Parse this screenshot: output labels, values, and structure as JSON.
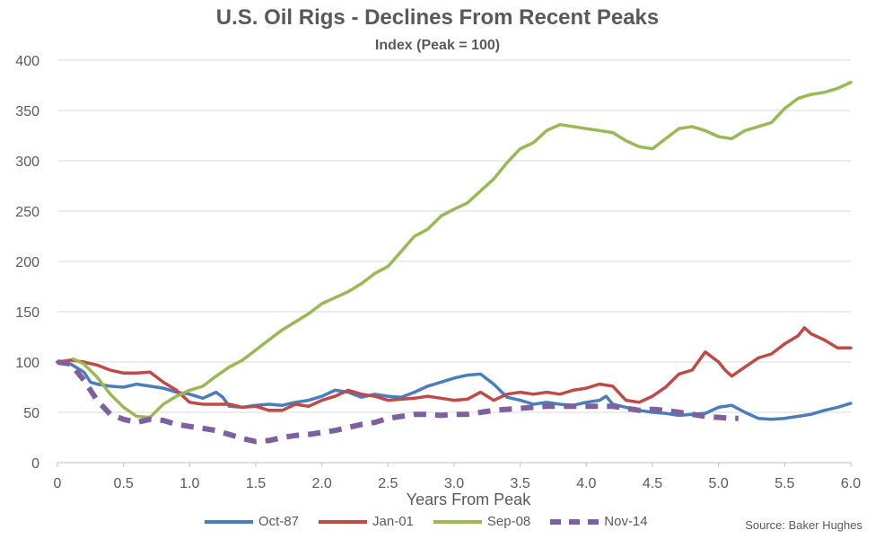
{
  "chart_data": {
    "type": "line",
    "title": "U.S. Oil Rigs - Declines From Recent Peaks",
    "subtitle": "Index (Peak = 100)",
    "xlabel": "Years From Peak",
    "ylabel": "",
    "xlim": [
      0,
      6.0
    ],
    "ylim": [
      0,
      400
    ],
    "xticks": [
      "0",
      "0.5",
      "1.0",
      "1.5",
      "2.0",
      "2.5",
      "3.0",
      "3.5",
      "4.0",
      "4.5",
      "5.0",
      "5.5",
      "6.0"
    ],
    "yticks": [
      "0",
      "50",
      "100",
      "150",
      "200",
      "250",
      "300",
      "350",
      "400"
    ],
    "grid": "horizontal",
    "legend_position": "bottom",
    "source": "Source: Baker Hughes",
    "series": [
      {
        "name": "Oct-87",
        "color": "#4a7ebb",
        "style": "solid",
        "points": [
          [
            0,
            100
          ],
          [
            0.1,
            98
          ],
          [
            0.2,
            90
          ],
          [
            0.25,
            80
          ],
          [
            0.3,
            78
          ],
          [
            0.4,
            76
          ],
          [
            0.5,
            75
          ],
          [
            0.6,
            78
          ],
          [
            0.7,
            76
          ],
          [
            0.8,
            74
          ],
          [
            0.9,
            70
          ],
          [
            1.0,
            68
          ],
          [
            1.1,
            64
          ],
          [
            1.2,
            70
          ],
          [
            1.25,
            65
          ],
          [
            1.3,
            56
          ],
          [
            1.4,
            55
          ],
          [
            1.5,
            57
          ],
          [
            1.6,
            58
          ],
          [
            1.7,
            57
          ],
          [
            1.8,
            60
          ],
          [
            1.9,
            62
          ],
          [
            2.0,
            66
          ],
          [
            2.1,
            72
          ],
          [
            2.2,
            70
          ],
          [
            2.3,
            65
          ],
          [
            2.4,
            68
          ],
          [
            2.5,
            66
          ],
          [
            2.6,
            65
          ],
          [
            2.7,
            70
          ],
          [
            2.8,
            76
          ],
          [
            2.9,
            80
          ],
          [
            3.0,
            84
          ],
          [
            3.1,
            87
          ],
          [
            3.2,
            88
          ],
          [
            3.3,
            78
          ],
          [
            3.4,
            65
          ],
          [
            3.5,
            62
          ],
          [
            3.6,
            58
          ],
          [
            3.7,
            60
          ],
          [
            3.8,
            58
          ],
          [
            3.9,
            57
          ],
          [
            4.0,
            60
          ],
          [
            4.1,
            62
          ],
          [
            4.15,
            66
          ],
          [
            4.2,
            58
          ],
          [
            4.3,
            55
          ],
          [
            4.4,
            52
          ],
          [
            4.5,
            50
          ],
          [
            4.6,
            49
          ],
          [
            4.7,
            47
          ],
          [
            4.8,
            48
          ],
          [
            4.9,
            49
          ],
          [
            5.0,
            55
          ],
          [
            5.1,
            57
          ],
          [
            5.2,
            50
          ],
          [
            5.3,
            44
          ],
          [
            5.4,
            43
          ],
          [
            5.5,
            44
          ],
          [
            5.6,
            46
          ],
          [
            5.7,
            48
          ],
          [
            5.8,
            52
          ],
          [
            5.9,
            55
          ],
          [
            6.0,
            59
          ]
        ]
      },
      {
        "name": "Jan-01",
        "color": "#be4b48",
        "style": "solid",
        "points": [
          [
            0,
            100
          ],
          [
            0.1,
            102
          ],
          [
            0.2,
            100
          ],
          [
            0.3,
            97
          ],
          [
            0.4,
            92
          ],
          [
            0.5,
            89
          ],
          [
            0.6,
            89
          ],
          [
            0.7,
            90
          ],
          [
            0.8,
            80
          ],
          [
            0.9,
            72
          ],
          [
            1.0,
            60
          ],
          [
            1.1,
            58
          ],
          [
            1.2,
            58
          ],
          [
            1.3,
            58
          ],
          [
            1.4,
            55
          ],
          [
            1.5,
            56
          ],
          [
            1.6,
            52
          ],
          [
            1.7,
            52
          ],
          [
            1.8,
            58
          ],
          [
            1.9,
            56
          ],
          [
            2.0,
            62
          ],
          [
            2.1,
            66
          ],
          [
            2.2,
            72
          ],
          [
            2.3,
            68
          ],
          [
            2.4,
            66
          ],
          [
            2.5,
            62
          ],
          [
            2.6,
            63
          ],
          [
            2.7,
            64
          ],
          [
            2.8,
            66
          ],
          [
            2.9,
            64
          ],
          [
            3.0,
            62
          ],
          [
            3.1,
            63
          ],
          [
            3.2,
            70
          ],
          [
            3.3,
            62
          ],
          [
            3.4,
            68
          ],
          [
            3.5,
            70
          ],
          [
            3.6,
            68
          ],
          [
            3.7,
            70
          ],
          [
            3.8,
            68
          ],
          [
            3.9,
            72
          ],
          [
            4.0,
            74
          ],
          [
            4.1,
            78
          ],
          [
            4.2,
            76
          ],
          [
            4.3,
            62
          ],
          [
            4.4,
            60
          ],
          [
            4.5,
            66
          ],
          [
            4.6,
            75
          ],
          [
            4.7,
            88
          ],
          [
            4.8,
            92
          ],
          [
            4.9,
            110
          ],
          [
            5.0,
            100
          ],
          [
            5.05,
            92
          ],
          [
            5.1,
            86
          ],
          [
            5.2,
            95
          ],
          [
            5.3,
            104
          ],
          [
            5.4,
            108
          ],
          [
            5.5,
            118
          ],
          [
            5.6,
            126
          ],
          [
            5.65,
            134
          ],
          [
            5.7,
            128
          ],
          [
            5.8,
            122
          ],
          [
            5.9,
            114
          ],
          [
            6.0,
            114
          ]
        ]
      },
      {
        "name": "Sep-08",
        "color": "#98b954",
        "style": "solid",
        "points": [
          [
            0.12,
            103
          ],
          [
            0.2,
            98
          ],
          [
            0.3,
            85
          ],
          [
            0.4,
            68
          ],
          [
            0.5,
            55
          ],
          [
            0.6,
            46
          ],
          [
            0.7,
            45
          ],
          [
            0.8,
            58
          ],
          [
            0.9,
            66
          ],
          [
            1.0,
            72
          ],
          [
            1.1,
            76
          ],
          [
            1.2,
            86
          ],
          [
            1.3,
            95
          ],
          [
            1.4,
            102
          ],
          [
            1.5,
            112
          ],
          [
            1.6,
            122
          ],
          [
            1.7,
            132
          ],
          [
            1.8,
            140
          ],
          [
            1.9,
            148
          ],
          [
            2.0,
            158
          ],
          [
            2.1,
            164
          ],
          [
            2.2,
            170
          ],
          [
            2.3,
            178
          ],
          [
            2.4,
            188
          ],
          [
            2.5,
            195
          ],
          [
            2.6,
            210
          ],
          [
            2.7,
            225
          ],
          [
            2.8,
            232
          ],
          [
            2.9,
            245
          ],
          [
            3.0,
            252
          ],
          [
            3.1,
            258
          ],
          [
            3.2,
            270
          ],
          [
            3.3,
            282
          ],
          [
            3.4,
            298
          ],
          [
            3.5,
            312
          ],
          [
            3.6,
            318
          ],
          [
            3.7,
            330
          ],
          [
            3.8,
            336
          ],
          [
            3.9,
            334
          ],
          [
            4.0,
            332
          ],
          [
            4.1,
            330
          ],
          [
            4.2,
            328
          ],
          [
            4.3,
            320
          ],
          [
            4.4,
            314
          ],
          [
            4.5,
            312
          ],
          [
            4.6,
            322
          ],
          [
            4.7,
            332
          ],
          [
            4.8,
            334
          ],
          [
            4.9,
            330
          ],
          [
            5.0,
            324
          ],
          [
            5.1,
            322
          ],
          [
            5.2,
            330
          ],
          [
            5.3,
            334
          ],
          [
            5.4,
            338
          ],
          [
            5.5,
            352
          ],
          [
            5.6,
            362
          ],
          [
            5.7,
            366
          ],
          [
            5.8,
            368
          ],
          [
            5.9,
            372
          ],
          [
            6.0,
            378
          ]
        ]
      },
      {
        "name": "Nov-14",
        "color": "#7d60a0",
        "style": "dashed",
        "points": [
          [
            0,
            100
          ],
          [
            0.1,
            98
          ],
          [
            0.2,
            82
          ],
          [
            0.3,
            62
          ],
          [
            0.4,
            48
          ],
          [
            0.5,
            43
          ],
          [
            0.6,
            40
          ],
          [
            0.7,
            43
          ],
          [
            0.8,
            42
          ],
          [
            0.9,
            38
          ],
          [
            1.0,
            36
          ],
          [
            1.1,
            34
          ],
          [
            1.2,
            32
          ],
          [
            1.3,
            28
          ],
          [
            1.4,
            24
          ],
          [
            1.5,
            21
          ],
          [
            1.6,
            22
          ],
          [
            1.7,
            25
          ],
          [
            1.8,
            27
          ],
          [
            1.9,
            28
          ],
          [
            2.0,
            30
          ],
          [
            2.1,
            32
          ],
          [
            2.2,
            35
          ],
          [
            2.3,
            38
          ],
          [
            2.4,
            40
          ],
          [
            2.5,
            44
          ],
          [
            2.6,
            46
          ],
          [
            2.7,
            48
          ],
          [
            2.8,
            48
          ],
          [
            2.9,
            47
          ],
          [
            3.0,
            48
          ],
          [
            3.1,
            48
          ],
          [
            3.2,
            50
          ],
          [
            3.3,
            52
          ],
          [
            3.4,
            53
          ],
          [
            3.5,
            54
          ],
          [
            3.6,
            55
          ],
          [
            3.7,
            56
          ],
          [
            3.8,
            56
          ],
          [
            3.9,
            56
          ],
          [
            4.0,
            56
          ],
          [
            4.1,
            56
          ],
          [
            4.2,
            56
          ],
          [
            4.3,
            54
          ],
          [
            4.4,
            52
          ],
          [
            4.5,
            53
          ],
          [
            4.6,
            52
          ],
          [
            4.7,
            50
          ],
          [
            4.8,
            48
          ],
          [
            4.9,
            46
          ],
          [
            5.0,
            45
          ],
          [
            5.1,
            44
          ],
          [
            5.15,
            44
          ]
        ]
      }
    ]
  }
}
